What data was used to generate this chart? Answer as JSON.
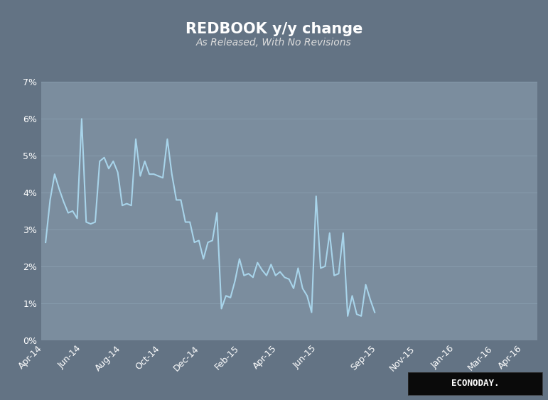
{
  "title": "REDBOOK y/y change",
  "subtitle": "As Released, With No Revisions",
  "background_color": "#637384",
  "plot_bg_color": "#7b8d9e",
  "line_color": "#a8d4ea",
  "line_width": 1.5,
  "ylim": [
    0,
    7
  ],
  "yticks": [
    0,
    1,
    2,
    3,
    4,
    5,
    6,
    7
  ],
  "ytick_labels": [
    "0%",
    "1%",
    "2%",
    "3%",
    "4%",
    "5%",
    "6%",
    "7%"
  ],
  "xtick_labels": [
    "Apr-14",
    "Jun-14",
    "Aug-14",
    "Oct-14",
    "Dec-14",
    "Feb-15",
    "Apr-15",
    "Jun-15",
    "Sep-15",
    "Nov-15",
    "Jan-16",
    "Mar-16",
    "Apr-16"
  ],
  "values": [
    2.65,
    3.8,
    4.5,
    4.1,
    3.75,
    3.45,
    3.5,
    3.3,
    6.0,
    3.2,
    3.15,
    3.2,
    4.85,
    4.95,
    4.65,
    4.85,
    4.55,
    3.65,
    3.7,
    3.65,
    5.45,
    4.45,
    4.85,
    4.5,
    4.5,
    4.45,
    4.4,
    5.45,
    4.5,
    3.8,
    3.8,
    3.2,
    3.2,
    2.65,
    2.7,
    2.2,
    2.65,
    2.7,
    3.45,
    0.85,
    1.2,
    1.15,
    1.6,
    2.2,
    1.75,
    1.8,
    1.7,
    2.1,
    1.9,
    1.75,
    2.05,
    1.75,
    1.85,
    1.7,
    1.65,
    1.4,
    1.95,
    1.4,
    1.2,
    0.75,
    3.9,
    1.95,
    2.0,
    2.9,
    1.75,
    1.8,
    2.9,
    0.65,
    1.2,
    0.7,
    0.65,
    1.5,
    1.1,
    0.75
  ],
  "title_fontsize": 15,
  "subtitle_fontsize": 10,
  "tick_fontsize": 9,
  "title_color": "#ffffff",
  "subtitle_color": "#dddddd",
  "tick_color": "#ffffff",
  "grid_color": "#8fa3b5",
  "grid_alpha": 0.6,
  "econoday_bg": "#0a0a0a",
  "econoday_text": "#ffffff"
}
